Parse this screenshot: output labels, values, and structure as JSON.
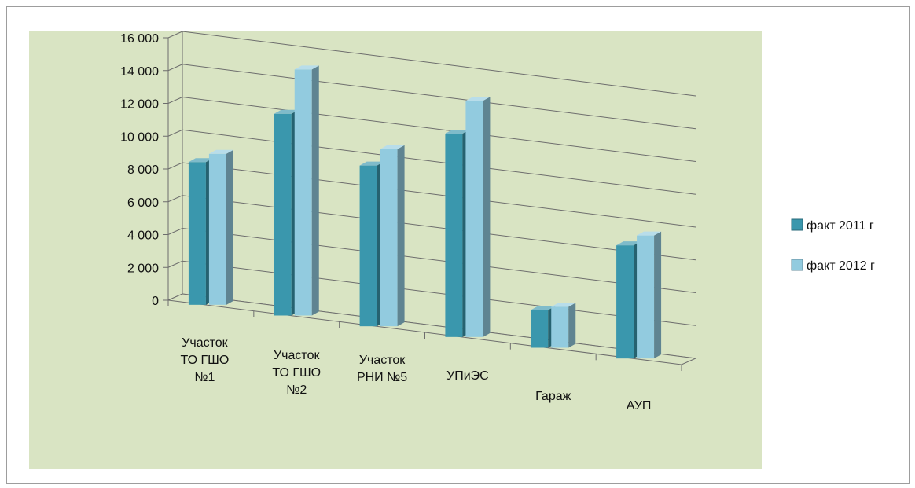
{
  "chart_data": {
    "type": "bar",
    "categories": [
      [
        "Участок",
        "ТО ГШО",
        "№1"
      ],
      [
        "Участок",
        "ТО ГШО",
        "№2"
      ],
      [
        "Участок",
        "РНИ №5"
      ],
      [
        "УПиЭС"
      ],
      [
        "Гараж"
      ],
      [
        "АУП"
      ]
    ],
    "series": [
      {
        "name": "факт 2011 г",
        "values": [
          8700,
          12300,
          9800,
          12400,
          2300,
          6900
        ],
        "color": "#3a97ad"
      },
      {
        "name": "факт 2012 г",
        "values": [
          9200,
          15000,
          10800,
          14400,
          2500,
          7500
        ],
        "color": "#92cbdf"
      }
    ],
    "ylim": [
      0,
      16000
    ],
    "yticks": [
      "0",
      "2 000",
      "4 000",
      "6 000",
      "8 000",
      "10 000",
      "12 000",
      "14 000",
      "16 000"
    ],
    "grid": true,
    "legend_position": "right",
    "plot_background": "#d9e4c3"
  }
}
